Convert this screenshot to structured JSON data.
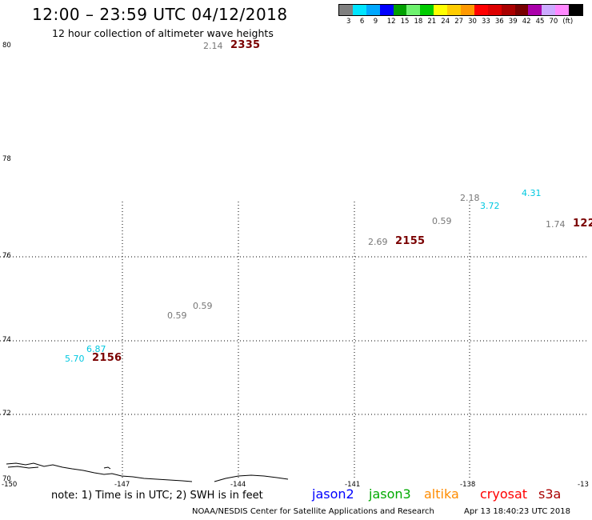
{
  "header": {
    "title": "12:00 – 23:59 UTC 04/12/2018",
    "subtitle": "12 hour collection of altimeter wave heights"
  },
  "legend": {
    "swatches": [
      "#808080",
      "#00e5ff",
      "#00a8ff",
      "#0000ff",
      "#00a000",
      "#6ef26e",
      "#00cc00",
      "#ffff00",
      "#ffcc00",
      "#ff9900",
      "#ff0000",
      "#dd0000",
      "#aa0000",
      "#770000",
      "#aa00aa",
      "#ccaaff",
      "#ff88ff",
      "#000000"
    ],
    "labels": [
      "3",
      "6",
      "9",
      "12",
      "15",
      "18",
      "21",
      "24",
      "27",
      "30",
      "33",
      "36",
      "39",
      "42",
      "45",
      "70",
      "(ft)"
    ]
  },
  "axes": {
    "lat_labels": [
      "80",
      "78",
      "76",
      "74",
      "72",
      "70"
    ],
    "lon_labels": [
      "-150",
      "-147",
      "-144",
      "-141",
      "-138",
      "-13"
    ]
  },
  "observations": {
    "v1": "2.14",
    "v2": "2.18",
    "v3": "4.31",
    "v4": "3.72",
    "v5": "0.59",
    "v6": "1.74",
    "v7": "122",
    "v8": "2.69",
    "v9": "0.59",
    "v10": "0.59",
    "v11": "6.87",
    "v12": "5.70"
  },
  "times": {
    "t1": "2335",
    "t2": "2155",
    "t3": "2156"
  },
  "footer": {
    "note": "note: 1) Time is in UTC; 2) SWH is in feet",
    "satellites": [
      {
        "name": "jason2",
        "color": "#0000ff"
      },
      {
        "name": "jason3",
        "color": "#00aa00"
      },
      {
        "name": "altika",
        "color": "#ff8c00"
      },
      {
        "name": "cryosat",
        "color": "#ff0000"
      },
      {
        "name": "s3a",
        "color": "#aa0000"
      }
    ],
    "credit": "NOAA/NESDIS Center for Satellite Applications and Research",
    "timestamp": "Apr 13 18:40:23 UTC 2018"
  }
}
